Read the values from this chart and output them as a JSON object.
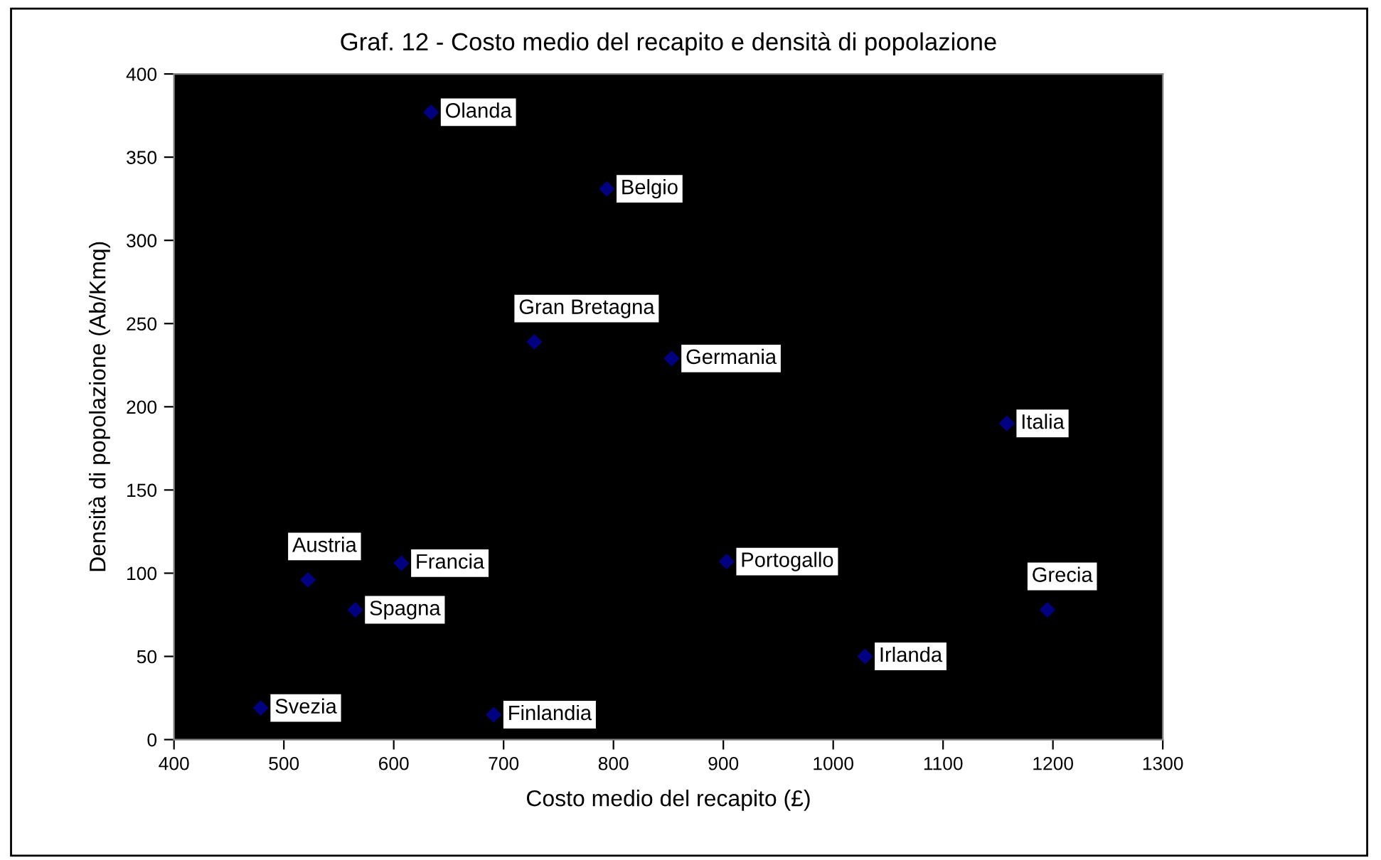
{
  "chart_data": {
    "type": "scatter",
    "title": "Graf. 12 - Costo medio del recapito e densità di popolazione",
    "xlabel": "Costo medio del recapito (£)",
    "ylabel": "Densità di popolazione (Ab/Kmq)",
    "series": [
      {
        "color": "#000080",
        "x": [
          634,
          794,
          728,
          853,
          522,
          607,
          565,
          479,
          691,
          903,
          1029,
          1158,
          1195
        ],
        "values": [
          377,
          331,
          239,
          229,
          96,
          106,
          78,
          19,
          15,
          107,
          50,
          190,
          78
        ]
      }
    ],
    "annotations": [
      {
        "text": "Olanda",
        "x": 634,
        "y": 377
      },
      {
        "text": "Belgio",
        "x": 794,
        "y": 331
      },
      {
        "text": "Gran Bretagna",
        "x": 728,
        "y": 239
      },
      {
        "text": "Germania",
        "x": 853,
        "y": 229
      },
      {
        "text": "Austria",
        "x": 522,
        "y": 96
      },
      {
        "text": "Francia",
        "x": 607,
        "y": 106
      },
      {
        "text": "Spagna",
        "x": 565,
        "y": 78
      },
      {
        "text": "Svezia",
        "x": 479,
        "y": 19
      },
      {
        "text": "Finlandia",
        "x": 691,
        "y": 15
      },
      {
        "text": "Portogallo",
        "x": 903,
        "y": 107
      },
      {
        "text": "Irlanda",
        "x": 1029,
        "y": 50
      },
      {
        "text": "Italia",
        "x": 1158,
        "y": 190
      },
      {
        "text": "Grecia",
        "x": 1195,
        "y": 78
      }
    ],
    "xlim": [
      400,
      1300
    ],
    "xticks": [
      400,
      500,
      600,
      700,
      800,
      900,
      1000,
      1100,
      1200,
      1300
    ],
    "ylim": [
      0,
      400
    ],
    "yticks": [
      0,
      50,
      100,
      150,
      200,
      250,
      300,
      350,
      400
    ],
    "marker": "diamond",
    "grid": false,
    "legend": false
  }
}
